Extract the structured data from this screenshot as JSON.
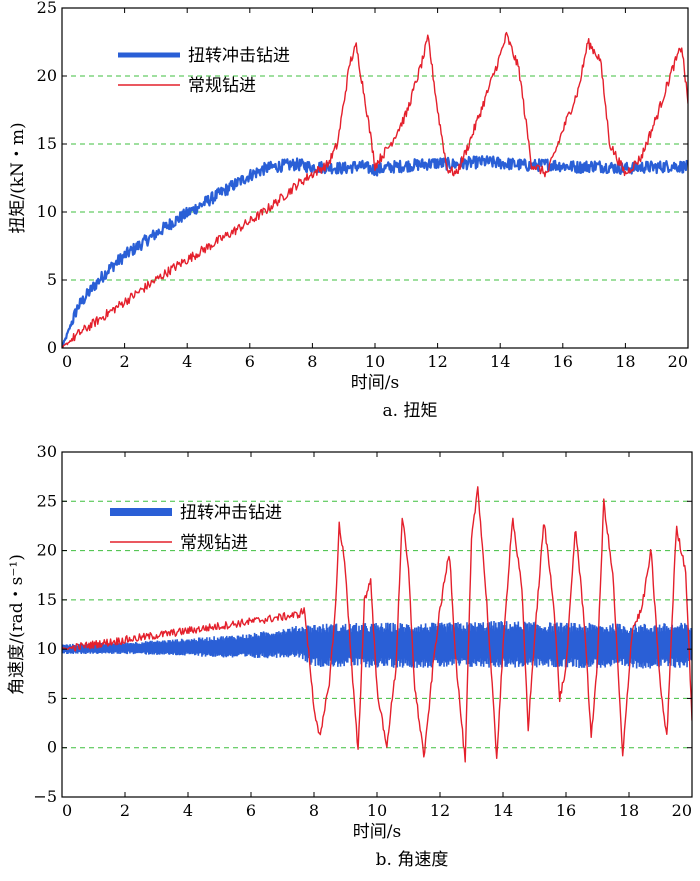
{
  "colors": {
    "torsional": "#2a5fd6",
    "conventional": "#e4202c",
    "grid": "#3fbf3f",
    "axis": "#000000"
  },
  "chart_data": [
    {
      "type": "line",
      "caption": "a. 扭矩",
      "xlabel": "时间/s",
      "ylabel": "扭矩/(kN・m)",
      "xlim": [
        0,
        20
      ],
      "ylim": [
        0,
        25
      ],
      "xticks": [
        0,
        2,
        4,
        6,
        8,
        10,
        12,
        14,
        16,
        18,
        20
      ],
      "yticks": [
        0,
        5,
        10,
        15,
        20,
        25
      ],
      "grid": "horizontal dashed",
      "legend_position": "top-left",
      "series": [
        {
          "name": "扭转冲击钻进",
          "color_key": "torsional",
          "x": [
            0,
            0.5,
            1,
            1.5,
            2,
            2.5,
            3,
            3.5,
            4,
            4.5,
            5,
            5.5,
            6,
            6.5,
            7,
            7.5,
            8,
            8.5,
            9,
            9.5,
            10,
            10.5,
            11,
            11.5,
            12,
            12.5,
            13,
            13.5,
            14,
            14.5,
            15,
            15.5,
            16,
            16.5,
            17,
            17.5,
            18,
            18.5,
            19,
            19.5,
            20
          ],
          "y": [
            0,
            3,
            4.5,
            5.8,
            6.8,
            7.6,
            8.4,
            9.2,
            9.9,
            10.6,
            11.3,
            12,
            12.7,
            13.2,
            13.4,
            13.5,
            13.3,
            13.3,
            13.2,
            13.4,
            13.1,
            13.3,
            13.4,
            13.5,
            13.6,
            13.5,
            13.6,
            13.7,
            13.6,
            13.5,
            13.4,
            13.5,
            13.4,
            13.3,
            13.4,
            13.3,
            13.2,
            13.3,
            13.3,
            13.4,
            13.3
          ]
        },
        {
          "name": "常规钻进",
          "color_key": "conventional",
          "x": [
            0,
            0.5,
            1,
            1.5,
            2,
            2.5,
            3,
            3.5,
            4,
            4.5,
            5,
            5.5,
            6,
            6.5,
            7,
            7.5,
            8,
            8.5,
            8.8,
            9.2,
            9.4,
            9.7,
            10,
            10.5,
            11,
            11.5,
            11.7,
            12,
            12.3,
            12.6,
            13,
            13.5,
            14,
            14.2,
            14.6,
            15,
            15.5,
            16,
            16.5,
            16.8,
            17.2,
            17.5,
            18,
            18.5,
            19,
            19.5,
            19.8,
            20
          ],
          "y": [
            0,
            1,
            1.8,
            2.6,
            3.4,
            4.2,
            5,
            5.8,
            6.5,
            7.2,
            7.9,
            8.6,
            9.3,
            10.1,
            11,
            12,
            12.8,
            13.5,
            15,
            21,
            22.2,
            18,
            13.4,
            15,
            17.2,
            21,
            22.8,
            17.5,
            13.2,
            12.8,
            15,
            18.2,
            21.5,
            23,
            20.5,
            13.5,
            12.8,
            16,
            19,
            22.5,
            21.2,
            15,
            12.8,
            14,
            17,
            20.5,
            22.2,
            18
          ]
        }
      ]
    },
    {
      "type": "line",
      "caption": "b. 角速度",
      "xlabel": "时间/s",
      "ylabel": "角速度/(rad・s⁻¹)",
      "xlim": [
        0,
        20
      ],
      "ylim": [
        -5,
        30
      ],
      "xticks": [
        0,
        2,
        4,
        6,
        8,
        10,
        12,
        14,
        16,
        18,
        20
      ],
      "yticks": [
        -5,
        0,
        5,
        10,
        15,
        20,
        25,
        30
      ],
      "grid": "horizontal dashed",
      "legend_position": "top-left",
      "series": [
        {
          "name": "扭转冲击钻进",
          "color_key": "torsional",
          "x": [
            0,
            2,
            4,
            6,
            7.5,
            8,
            10,
            12,
            14,
            16,
            18,
            20
          ],
          "y": [
            10,
            10.1,
            10.2,
            10.3,
            10.8,
            10.4,
            10.4,
            10.4,
            10.5,
            10.4,
            10.3,
            10.4
          ],
          "band_halfwidth": [
            0.5,
            0.6,
            0.9,
            1.3,
            1.6,
            2.2,
            2.3,
            2.3,
            2.4,
            2.3,
            2.3,
            2.3
          ]
        },
        {
          "name": "常规钻进",
          "color_key": "conventional",
          "x": [
            0,
            7.5,
            7.7,
            8.0,
            8.2,
            8.5,
            8.7,
            8.8,
            9.0,
            9.2,
            9.4,
            9.6,
            9.8,
            10.0,
            10.3,
            10.6,
            10.8,
            11.0,
            11.2,
            11.5,
            11.8,
            12.0,
            12.3,
            12.5,
            12.8,
            13.0,
            13.2,
            13.5,
            13.8,
            14.0,
            14.3,
            14.6,
            14.8,
            15.0,
            15.3,
            15.6,
            15.8,
            16.0,
            16.3,
            16.6,
            16.8,
            17.0,
            17.2,
            17.5,
            17.8,
            18.1,
            18.4,
            18.7,
            19.0,
            19.2,
            19.5,
            19.8,
            20.0
          ],
          "y": [
            10,
            13.5,
            14,
            4,
            1,
            7,
            15,
            22.8,
            18,
            8,
            -0.5,
            15,
            17,
            6,
            0,
            8,
            23.5,
            18,
            6,
            -1,
            9,
            14,
            20,
            9,
            -1.5,
            21,
            26.5,
            14,
            -1,
            10,
            23.5,
            16,
            2,
            11,
            23,
            15,
            5,
            8,
            22.5,
            12,
            0.8,
            9,
            25,
            17,
            -1,
            12,
            14,
            20,
            6,
            1,
            22.3,
            18,
            3
          ]
        }
      ]
    }
  ]
}
